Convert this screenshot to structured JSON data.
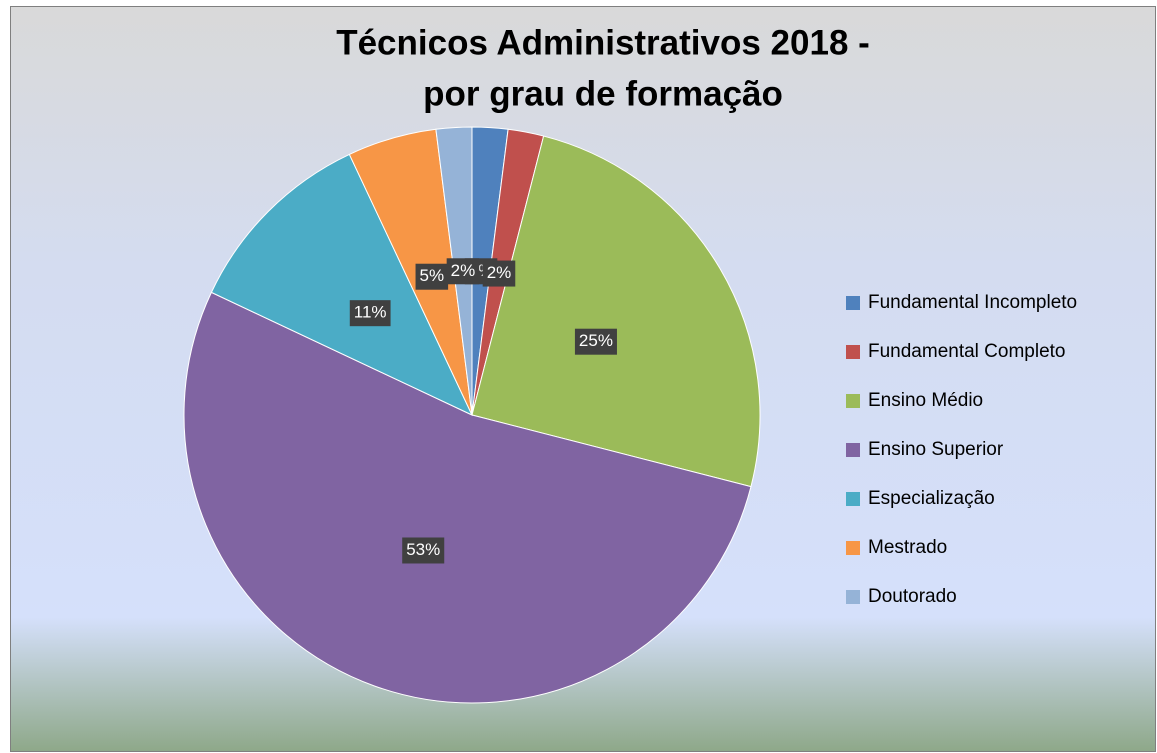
{
  "chart_data": {
    "type": "pie",
    "title": [
      "Técnicos Administrativos 2018 -",
      "por grau de formação"
    ],
    "categories": [
      "Fundamental Incompleto",
      "Fundamental Completo",
      "Ensino Médio",
      "Ensino Superior",
      "Especialização",
      "Mestrado",
      "Doutorado"
    ],
    "values": [
      2,
      2,
      25,
      53,
      11,
      5,
      2
    ],
    "value_labels": [
      "2%",
      "2%",
      "25%",
      "53%",
      "11%",
      "5%",
      "2%"
    ],
    "colors": [
      "#4f81bd",
      "#c0504d",
      "#9bbb59",
      "#8064a2",
      "#4bacc6",
      "#f79646",
      "#95b3d7"
    ],
    "legend": "right"
  }
}
